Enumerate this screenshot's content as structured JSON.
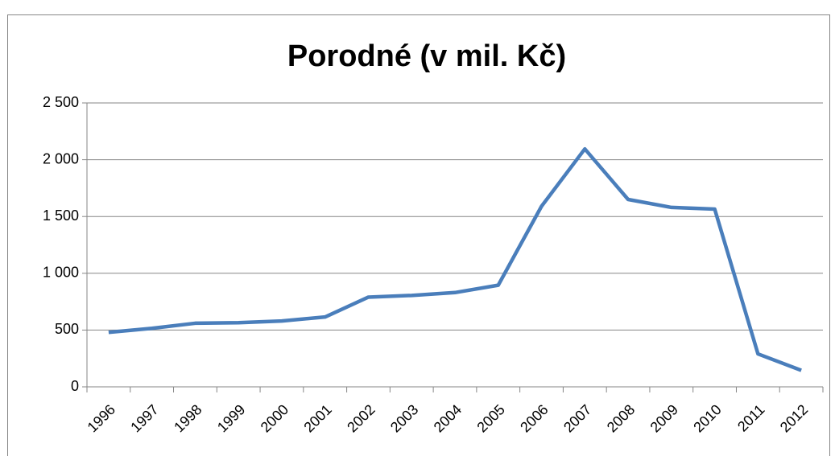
{
  "chart_data": {
    "type": "line",
    "title": "Porodné (v mil. Kč)",
    "categories": [
      "1996",
      "1997",
      "1998",
      "1999",
      "2000",
      "2001",
      "2002",
      "2003",
      "2004",
      "2005",
      "2006",
      "2007",
      "2008",
      "2009",
      "2010",
      "2011",
      "2012"
    ],
    "values": [
      480,
      515,
      560,
      565,
      580,
      615,
      790,
      805,
      830,
      895,
      1590,
      2095,
      1650,
      1580,
      1565,
      290,
      145
    ],
    "color": "#4a7ebb",
    "ylim": [
      0,
      2500
    ],
    "yticks": [
      0,
      500,
      {
        "value": 1000,
        "label": "1 000"
      },
      {
        "value": 1500,
        "label": "1 500"
      },
      {
        "value": 2000,
        "label": "2 000"
      },
      {
        "value": 2500,
        "label": "2 500"
      }
    ],
    "grid": true
  }
}
